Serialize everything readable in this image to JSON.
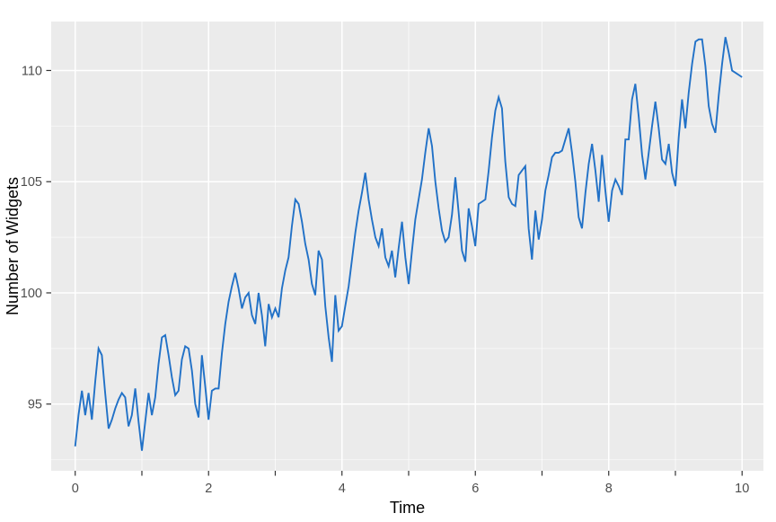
{
  "page": {
    "background": "#ffffff"
  },
  "chart_data": {
    "type": "line",
    "title": "",
    "xlabel": "Time",
    "ylabel": "Number of Widgets",
    "legend": "none",
    "grid": "on",
    "x0": 0,
    "dx": 0.05,
    "values": [
      93.1,
      94.5,
      95.6,
      94.5,
      95.5,
      94.3,
      96.0,
      97.5,
      97.2,
      95.5,
      93.9,
      94.3,
      94.8,
      95.2,
      95.5,
      95.3,
      94.0,
      94.5,
      95.7,
      94.2,
      92.9,
      94.2,
      95.5,
      94.5,
      95.3,
      96.8,
      98.0,
      98.1,
      97.2,
      96.2,
      95.4,
      95.6,
      97.0,
      97.6,
      97.5,
      96.5,
      95.0,
      94.4,
      97.2,
      95.8,
      94.3,
      95.6,
      95.7,
      95.7,
      97.3,
      98.6,
      99.6,
      100.3,
      100.9,
      100.2,
      99.3,
      99.8,
      100.0,
      99.0,
      98.6,
      100.0,
      99.0,
      97.6,
      99.5,
      98.9,
      99.3,
      98.9,
      100.2,
      101.0,
      101.6,
      103.0,
      104.2,
      104.0,
      103.2,
      102.2,
      101.5,
      100.4,
      99.9,
      101.9,
      101.5,
      99.4,
      98.0,
      96.9,
      99.9,
      98.3,
      98.5,
      99.4,
      100.3,
      101.5,
      102.7,
      103.7,
      104.5,
      105.4,
      104.2,
      103.3,
      102.5,
      102.1,
      102.9,
      101.6,
      101.2,
      101.9,
      100.7,
      102.0,
      103.2,
      101.6,
      100.4,
      101.9,
      103.3,
      104.2,
      105.1,
      106.3,
      107.4,
      106.6,
      105.0,
      103.8,
      102.8,
      102.3,
      102.5,
      103.5,
      105.2,
      103.6,
      101.9,
      101.4,
      103.8,
      103.0,
      102.1,
      104.0,
      104.1,
      104.2,
      105.5,
      107.0,
      108.2,
      108.8,
      108.3,
      105.9,
      104.3,
      104.0,
      103.9,
      105.3,
      105.5,
      105.7,
      102.9,
      101.5,
      103.7,
      102.4,
      103.3,
      104.6,
      105.3,
      106.1,
      106.3,
      106.3,
      106.4,
      106.9,
      107.4,
      106.3,
      105.0,
      103.4,
      102.9,
      104.5,
      105.8,
      106.7,
      105.5,
      104.1,
      106.2,
      104.6,
      103.2,
      104.6,
      105.1,
      104.8,
      104.4,
      106.9,
      106.9,
      108.7,
      109.4,
      107.9,
      106.2,
      105.1,
      106.3,
      107.5,
      108.6,
      107.4,
      106.0,
      105.8,
      106.7,
      105.4,
      104.8,
      107.0,
      108.7,
      107.4,
      109.0,
      110.3,
      111.3,
      111.4,
      111.4,
      110.2,
      108.4,
      107.6,
      107.2,
      108.9,
      110.3,
      111.5,
      110.8,
      110.0,
      109.9,
      109.8,
      109.7
    ],
    "xlim": [
      -0.36,
      10.32
    ],
    "ylim": [
      92.0,
      112.2
    ],
    "x_major_ticks": [
      0,
      2,
      4,
      6,
      8,
      10
    ],
    "x_tick_marks": [
      0,
      1,
      2,
      3,
      4,
      5,
      6,
      7,
      8,
      9,
      10
    ],
    "x_minor_gridlines": [
      1,
      3,
      5,
      7,
      9
    ],
    "y_ticks": [
      95,
      100,
      105,
      110
    ],
    "y_minor_gridlines": [
      92.5,
      97.5,
      102.5,
      107.5
    ],
    "colors": {
      "line": "#2171c7",
      "panel": "#ebebeb",
      "grid_major": "#ffffff",
      "grid_minor": "#ffffff",
      "tick_label": "#4d4d4d",
      "axis_title": "#000000",
      "tick_mark": "#333333",
      "background": "#ffffff"
    }
  }
}
